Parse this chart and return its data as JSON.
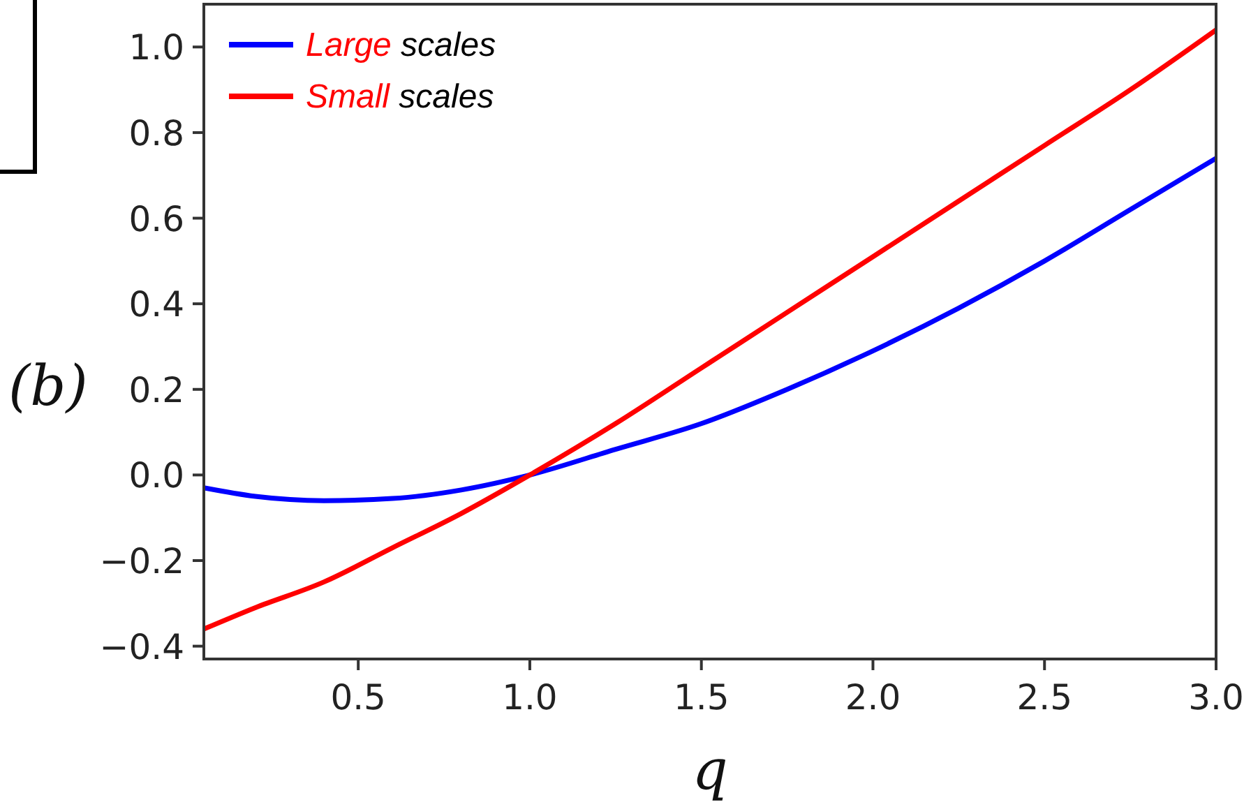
{
  "chart_data": {
    "type": "line",
    "xlabel": "q",
    "annotations": [
      "(b)"
    ],
    "xlim": [
      0.05,
      3.0
    ],
    "ylim": [
      -0.43,
      1.1
    ],
    "xticks": [
      {
        "value": 0.5,
        "label": "0.5"
      },
      {
        "value": 1.0,
        "label": "1.0"
      },
      {
        "value": 1.5,
        "label": "1.5"
      },
      {
        "value": 2.0,
        "label": "2.0"
      },
      {
        "value": 2.5,
        "label": "2.5"
      },
      {
        "value": 3.0,
        "label": "3.0"
      }
    ],
    "yticks": [
      {
        "value": -0.4,
        "label": "−0.4"
      },
      {
        "value": -0.2,
        "label": "−0.2"
      },
      {
        "value": 0,
        "label": "0.0"
      },
      {
        "value": 0.2,
        "label": "0.2"
      },
      {
        "value": 0.4,
        "label": "0.4"
      },
      {
        "value": 0.6,
        "label": "0.6"
      },
      {
        "value": 0.8,
        "label": "0.8"
      },
      {
        "value": 1.0,
        "label": "1.0"
      }
    ],
    "legend": "top left",
    "line_style": "solid",
    "x": [
      0.05,
      0.2,
      0.4,
      0.6,
      0.8,
      1.0,
      1.25,
      1.5,
      1.75,
      2.0,
      2.25,
      2.5,
      2.75,
      3.0
    ],
    "series": [
      {
        "name": "Large scales",
        "color": "#0000ff",
        "values": [
          -0.03,
          -0.05,
          -0.06,
          -0.055,
          -0.035,
          0,
          0.06,
          0.12,
          0.2,
          0.29,
          0.39,
          0.5,
          0.62,
          0.74
        ]
      },
      {
        "name": "Small scales",
        "color": "#ff0000",
        "values": [
          -0.36,
          -0.31,
          -0.25,
          -0.17,
          -0.09,
          0,
          0.12,
          0.25,
          0.38,
          0.51,
          0.64,
          0.77,
          0.9,
          1.04
        ]
      }
    ]
  }
}
